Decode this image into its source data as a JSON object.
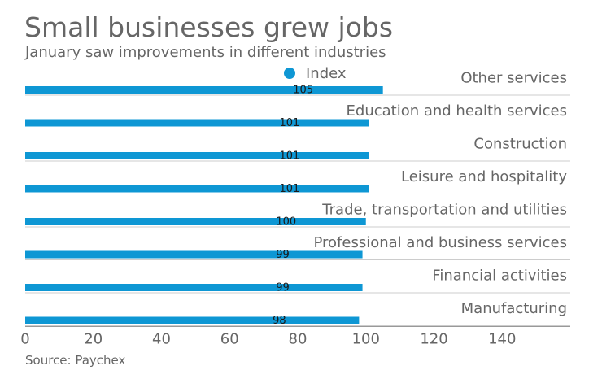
{
  "chart_data": {
    "type": "bar",
    "orientation": "horizontal",
    "title": "Small businesses grew jobs",
    "subtitle": "January saw improvements in different industries",
    "source": "Source: Paychex",
    "legend_position": "top-center",
    "grid": false,
    "xlim": [
      0,
      160
    ],
    "xticks": [
      0,
      20,
      40,
      60,
      80,
      100,
      120,
      140
    ],
    "categories": [
      "Other services",
      "Education and health services",
      "Construction",
      "Leisure and hospitality",
      "Trade, transportation and utilities",
      "Professional and business services",
      "Financial activities",
      "Manufacturing"
    ],
    "series": [
      {
        "name": "Index",
        "color": "#0e97d4",
        "values": [
          105,
          101,
          101,
          101,
          100,
          99,
          99,
          98
        ],
        "labels": [
          "105",
          "101",
          "101",
          "101",
          "100",
          "99",
          "99",
          "98"
        ]
      }
    ]
  }
}
